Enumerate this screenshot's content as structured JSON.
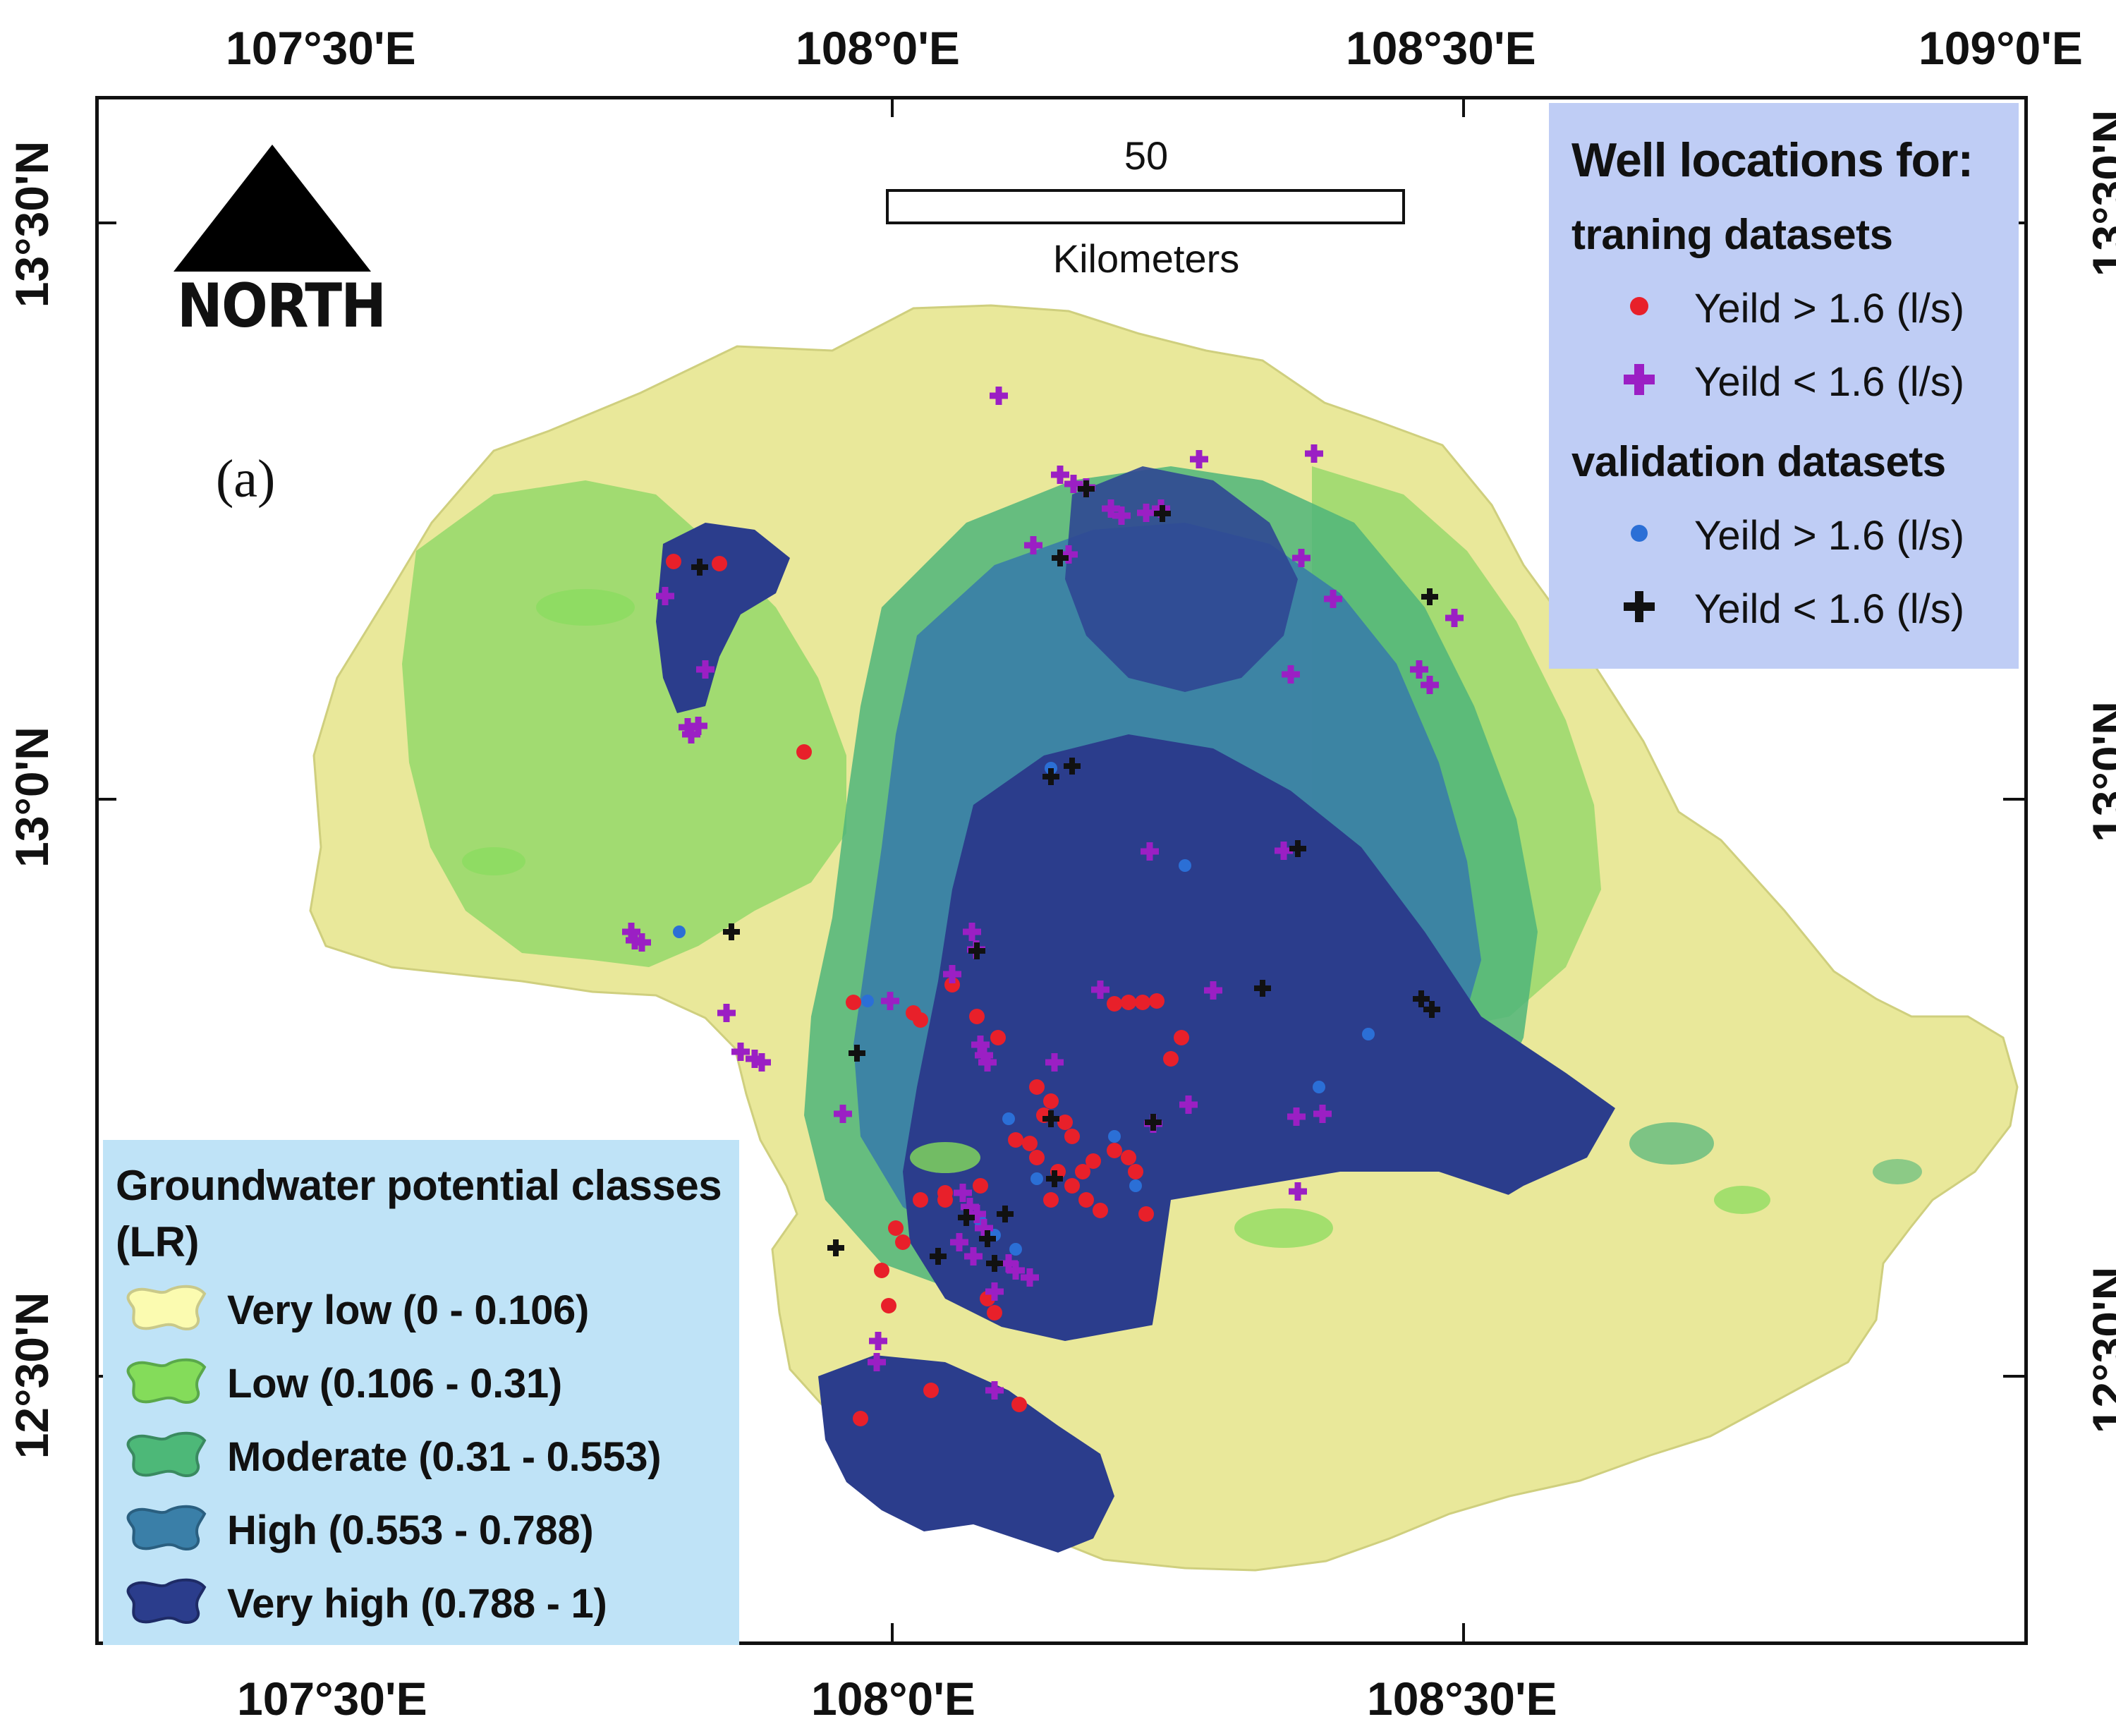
{
  "figure": {
    "panel_label": "(a)",
    "north_label": "NORTH",
    "scale_bar": {
      "value": "50",
      "unit": "Kilometers"
    }
  },
  "coords": {
    "top": [
      "107°30'E",
      "108°0'E",
      "108°30'E",
      "109°0'E"
    ],
    "bottom": [
      "107°30'E",
      "108°0'E",
      "108°30'E"
    ],
    "left": [
      "13°30'N",
      "13°0'N",
      "12°30'N"
    ],
    "right": [
      "13°30'N",
      "13°0'N",
      "12°30'N"
    ]
  },
  "well_legend": {
    "title": "Well locations for:",
    "training_heading": "traning datasets",
    "validation_heading": "validation datasets",
    "items": [
      {
        "label": "Yeild > 1.6 (l/s)",
        "symbol": "dot",
        "color": "#e8202a",
        "group": "training"
      },
      {
        "label": "Yeild < 1.6 (l/s)",
        "symbol": "plus",
        "color": "#9b1fc4",
        "group": "training"
      },
      {
        "label": "Yeild > 1.6 (l/s)",
        "symbol": "dot",
        "color": "#2b6fd6",
        "group": "validation"
      },
      {
        "label": "Yeild < 1.6 (l/s)",
        "symbol": "plus",
        "color": "#111111",
        "group": "validation"
      }
    ]
  },
  "class_legend": {
    "title_line1": "Groundwater potential classes",
    "title_line2": "(LR)",
    "classes": [
      {
        "label": "Very low (0 - 0.106)",
        "color": "#ecec9a"
      },
      {
        "label": "Low (0.106 - 0.31)",
        "color": "#84dc5a"
      },
      {
        "label": "Moderate (0.31 - 0.553)",
        "color": "#4db878"
      },
      {
        "label": "High (0.553 - 0.788)",
        "color": "#3a7fa8"
      },
      {
        "label": "Very high (0.788 - 1)",
        "color": "#2b3d8c"
      }
    ]
  },
  "colors": {
    "very_low": "#ecec9a",
    "low": "#84dc5a",
    "moderate": "#4db878",
    "high": "#3a7fa8",
    "very_high": "#2b3d8c",
    "training_high_yield": "#e8202a",
    "training_low_yield": "#9b1fc4",
    "validation_high_yield": "#2b6fd6",
    "validation_low_yield": "#111111"
  }
}
